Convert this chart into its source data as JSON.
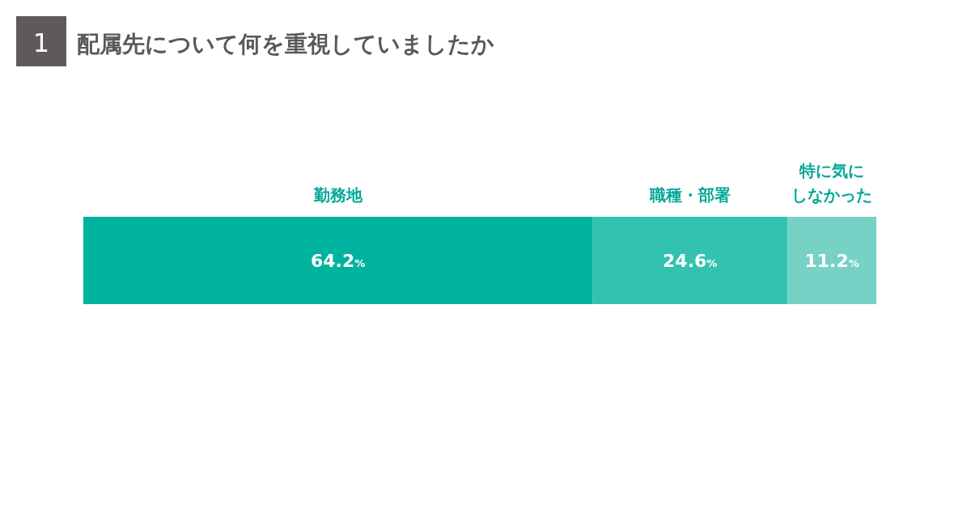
{
  "chart_data": {
    "type": "bar",
    "orientation": "horizontal",
    "stacked": true,
    "title": "配属先について何を重視していましたか",
    "annotations": [
      "1"
    ],
    "categories": [
      null
    ],
    "tick_labels": false,
    "legend": false,
    "series": [
      {
        "name": "勤務地",
        "color": "#00b39f",
        "values": [
          64.2
        ],
        "value_labels": [
          "64.2%"
        ]
      },
      {
        "name": "職種・部署",
        "color": "#33c2b0",
        "values": [
          24.6
        ],
        "value_labels": [
          "24.6%"
        ]
      },
      {
        "name": "特に気にしなかった",
        "color": "#77d1c4",
        "values": [
          11.2
        ],
        "value_labels": [
          "11.2%"
        ]
      }
    ]
  }
}
